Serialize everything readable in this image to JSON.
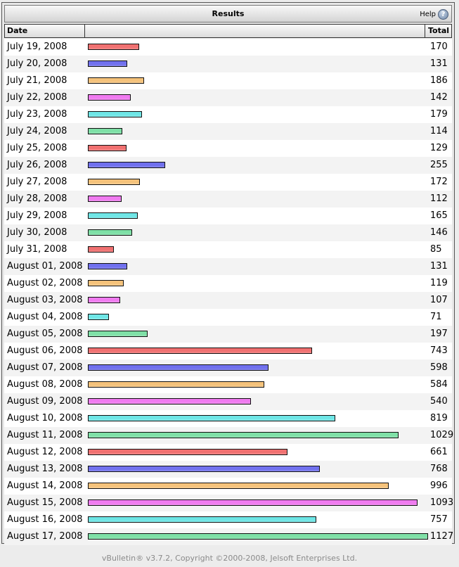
{
  "header": {
    "title": "Results",
    "help_label": "Help"
  },
  "columns": {
    "date": "Date",
    "total": "Total"
  },
  "colors": [
    "#f07070",
    "#7070ee",
    "#f5c27a",
    "#f07af0",
    "#6ee6e6",
    "#7ee0a6"
  ],
  "chart_data": {
    "type": "bar",
    "categories": [
      "July 19, 2008",
      "July 20, 2008",
      "July 21, 2008",
      "July 22, 2008",
      "July 23, 2008",
      "July 24, 2008",
      "July 25, 2008",
      "July 26, 2008",
      "July 27, 2008",
      "July 28, 2008",
      "July 29, 2008",
      "July 30, 2008",
      "July 31, 2008",
      "August 01, 2008",
      "August 02, 2008",
      "August 03, 2008",
      "August 04, 2008",
      "August 05, 2008",
      "August 06, 2008",
      "August 07, 2008",
      "August 08, 2008",
      "August 09, 2008",
      "August 10, 2008",
      "August 11, 2008",
      "August 12, 2008",
      "August 13, 2008",
      "August 14, 2008",
      "August 15, 2008",
      "August 16, 2008",
      "August 17, 2008"
    ],
    "values": [
      170,
      131,
      186,
      142,
      179,
      114,
      129,
      255,
      172,
      112,
      165,
      146,
      85,
      131,
      119,
      107,
      71,
      197,
      743,
      598,
      584,
      540,
      819,
      1029,
      661,
      768,
      996,
      1093,
      757,
      1127
    ],
    "max": 1127
  },
  "footer": {
    "text": "vBulletin® v3.7.2, Copyright ©2000-2008, Jelsoft Enterprises Ltd."
  }
}
